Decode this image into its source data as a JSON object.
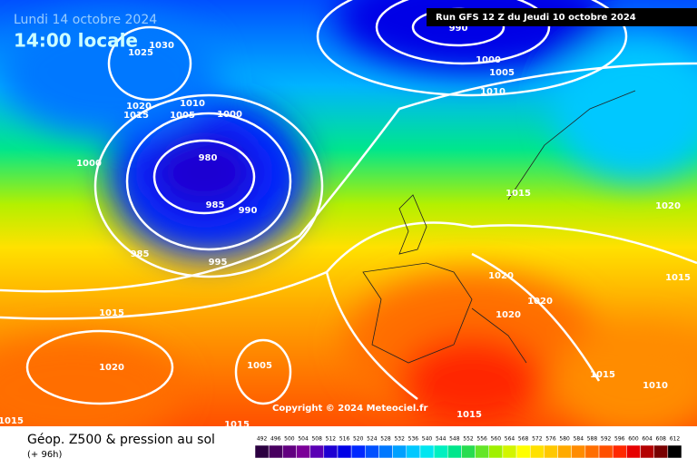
{
  "header": {
    "date": "Lundi 14 octobre 2024",
    "time": "14:00 locale",
    "run": "Run GFS 12 Z du Jeudi 10 octobre 2024"
  },
  "isobar_labels": [
    "1030",
    "1025",
    "990",
    "1000",
    "1005",
    "1010",
    "1020",
    "1015",
    "1010",
    "1005",
    "1000",
    "1000",
    "980",
    "985",
    "990",
    "985",
    "995",
    "1015",
    "1020",
    "1020",
    "1015",
    "1020",
    "1020",
    "1015",
    "1020",
    "1005",
    "1015",
    "1010",
    "1015",
    "1015",
    "1015"
  ],
  "copyright": "Copyright © 2024 Meteociel.fr",
  "footer": {
    "title": "Géop. Z500 & pression au sol",
    "lead": "(+ 96h)"
  },
  "legend": {
    "labels": [
      492,
      496,
      500,
      504,
      508,
      512,
      516,
      520,
      524,
      528,
      532,
      536,
      540,
      544,
      548,
      552,
      556,
      560,
      564,
      568,
      572,
      576,
      580,
      584,
      588,
      592,
      596,
      600,
      604,
      608,
      612
    ]
  }
}
